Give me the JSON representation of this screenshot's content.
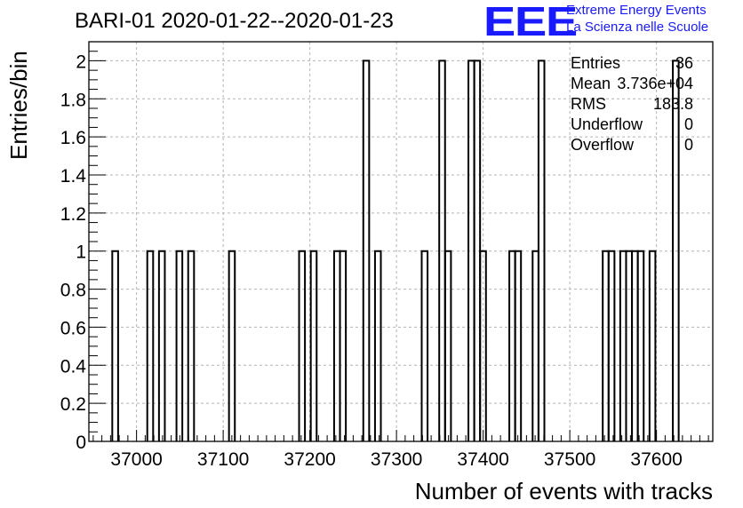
{
  "title": "BARI-01 2020-01-22--2020-01-23",
  "logo": {
    "mark": "EEE",
    "line1": "Extreme Energy Events",
    "line2": "La Scienza nelle Scuole",
    "color": "#1a1aff"
  },
  "stats": [
    {
      "label": "Entries",
      "value": "36"
    },
    {
      "label": "Mean",
      "value": "3.736e+04"
    },
    {
      "label": "RMS",
      "value": "183.8"
    },
    {
      "label": "Underflow",
      "value": "0"
    },
    {
      "label": "Overflow",
      "value": "0"
    }
  ],
  "chart_data": {
    "type": "histogram",
    "xlabel": "Number of events with tracks",
    "ylabel": "Entries/bin",
    "xlim": [
      36945,
      37665
    ],
    "ylim": [
      0,
      2.1
    ],
    "xticks": [
      37000,
      37100,
      37200,
      37300,
      37400,
      37500,
      37600
    ],
    "xtick_labels": [
      "37000",
      "37100",
      "37200",
      "37300",
      "37400",
      "37500",
      "37600"
    ],
    "yticks": [
      0,
      0.2,
      0.4,
      0.6,
      0.8,
      1,
      1.2,
      1.4,
      1.6,
      1.8,
      2
    ],
    "ytick_labels": [
      "0",
      "0.2",
      "0.4",
      "0.6",
      "0.8",
      "1",
      "1.2",
      "1.4",
      "1.6",
      "1.8",
      "2"
    ],
    "grid": true,
    "bin_width": 6.74,
    "bins": [
      {
        "x": 36972.0,
        "count": 1
      },
      {
        "x": 37012.4,
        "count": 1
      },
      {
        "x": 37025.9,
        "count": 1
      },
      {
        "x": 37046.1,
        "count": 1
      },
      {
        "x": 37059.6,
        "count": 1
      },
      {
        "x": 37106.7,
        "count": 1
      },
      {
        "x": 37187.6,
        "count": 1
      },
      {
        "x": 37201.1,
        "count": 1
      },
      {
        "x": 37228.0,
        "count": 1
      },
      {
        "x": 37234.8,
        "count": 1
      },
      {
        "x": 37261.7,
        "count": 2
      },
      {
        "x": 37275.2,
        "count": 1
      },
      {
        "x": 37329.1,
        "count": 1
      },
      {
        "x": 37349.3,
        "count": 2
      },
      {
        "x": 37356.1,
        "count": 1
      },
      {
        "x": 37383.0,
        "count": 2
      },
      {
        "x": 37389.7,
        "count": 2
      },
      {
        "x": 37396.5,
        "count": 1
      },
      {
        "x": 37430.2,
        "count": 1
      },
      {
        "x": 37436.9,
        "count": 1
      },
      {
        "x": 37457.1,
        "count": 1
      },
      {
        "x": 37463.9,
        "count": 2
      },
      {
        "x": 37538.0,
        "count": 1
      },
      {
        "x": 37544.8,
        "count": 1
      },
      {
        "x": 37558.2,
        "count": 1
      },
      {
        "x": 37565.0,
        "count": 1
      },
      {
        "x": 37571.7,
        "count": 1
      },
      {
        "x": 37578.5,
        "count": 1
      },
      {
        "x": 37592.0,
        "count": 1
      },
      {
        "x": 37618.9,
        "count": 2
      }
    ]
  }
}
